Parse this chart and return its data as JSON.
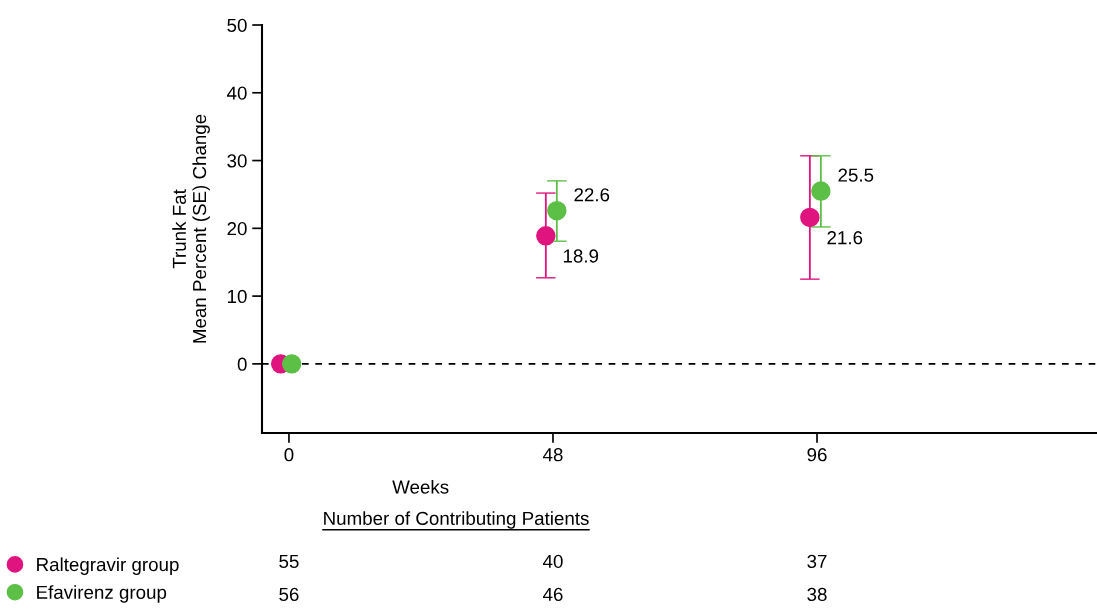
{
  "chart_data": {
    "type": "scatter",
    "xlabel": "Weeks",
    "ylabel": "Trunk Fat\nMean Percent (SE) Change",
    "xlim": [
      -4.9,
      146.9
    ],
    "ylim": [
      -10.2,
      50
    ],
    "xticks": [
      0,
      48,
      96
    ],
    "yticks": [
      0,
      10,
      20,
      30,
      40,
      50
    ],
    "series": [
      {
        "name": "Raltegravir group",
        "color": "#e0147f",
        "x": [
          -1.5,
          46.7,
          94.7
        ],
        "values": [
          0,
          18.9,
          21.6
        ],
        "errors": [
          null,
          [
            12.7,
            25.2
          ],
          [
            12.5,
            30.7
          ]
        ],
        "value_labels": [
          null,
          "18.9",
          "21.6"
        ]
      },
      {
        "name": "Efavirenz group",
        "color": "#5cbf46",
        "x": [
          0.5,
          48.7,
          96.7
        ],
        "values": [
          0,
          22.6,
          25.5
        ],
        "errors": [
          null,
          [
            18.1,
            27.0
          ],
          [
            20.2,
            30.7
          ]
        ],
        "value_labels": [
          null,
          "22.6",
          "25.5"
        ]
      }
    ],
    "ref_lines": [
      {
        "axis": "y",
        "value": 0,
        "color": "#000000",
        "line_style": "dashed"
      }
    ],
    "marker": "circle",
    "grid": false,
    "legend": "bottom left",
    "annotations": [
      "Number of Contributing Patients",
      "55",
      "40",
      "37",
      "56",
      "46",
      "38"
    ]
  }
}
